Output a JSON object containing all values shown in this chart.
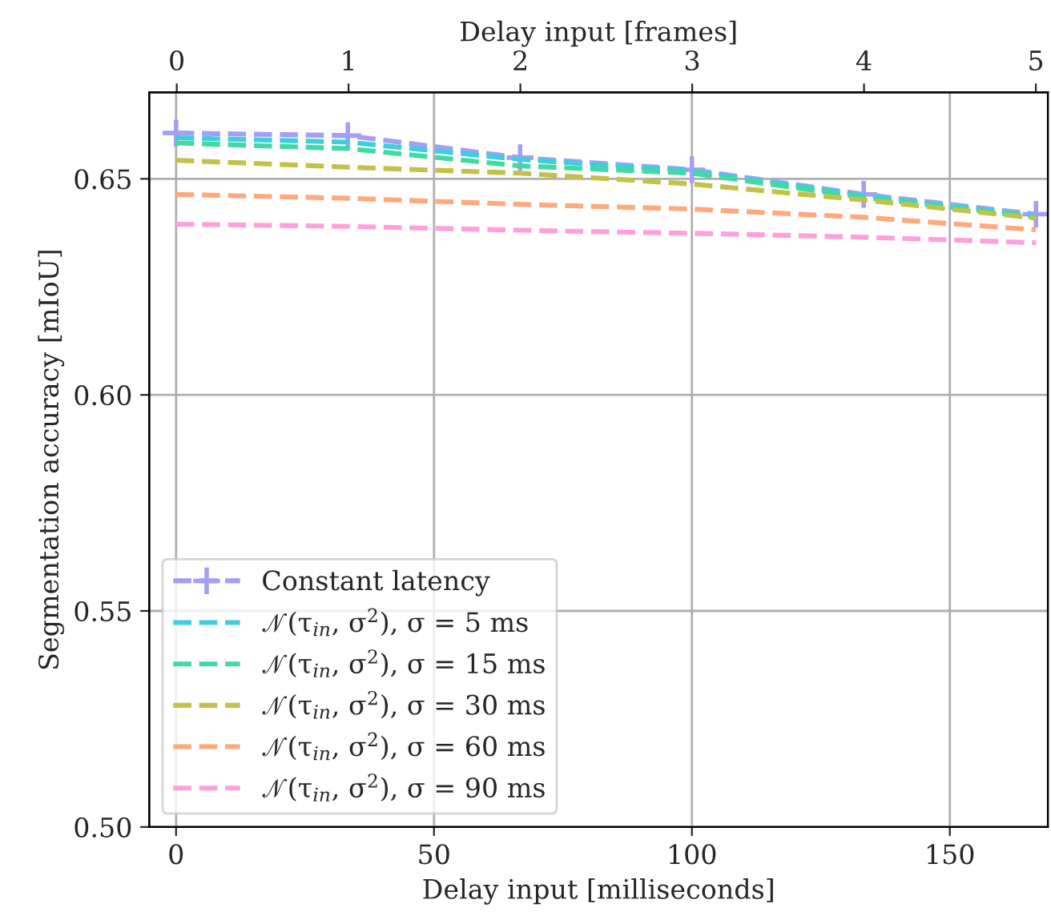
{
  "chart_data": {
    "type": "line",
    "xlabel": "Delay input [milliseconds]",
    "x2label": "Delay input [frames]",
    "ylabel": "Segmentation accuracy [mIoU]",
    "x": [
      0,
      33.3,
      66.7,
      100,
      133.3,
      166.7
    ],
    "xlim": [
      -5.2,
      169
    ],
    "xticks": [
      0,
      50,
      100,
      150
    ],
    "x2lim": [
      -0.16,
      5.07
    ],
    "x2ticks": [
      0,
      1,
      2,
      3,
      4,
      5
    ],
    "ylim": [
      0.5,
      0.67
    ],
    "yticks": [
      {
        "value": 0.5,
        "label": "0.50"
      },
      {
        "value": 0.55,
        "label": "0.55"
      },
      {
        "value": 0.6,
        "label": "0.60"
      },
      {
        "value": 0.65,
        "label": "0.65"
      }
    ],
    "grid": true,
    "legend": "lower left",
    "line_style": "dashed",
    "series": [
      {
        "name": "Constant latency",
        "color": "#a59ef5",
        "marker": "cross",
        "values": [
          0.6606,
          0.66,
          0.6549,
          0.6521,
          0.6464,
          0.6418
        ]
      },
      {
        "name": "𝒩(τ$_{in}$, σ$^{2}$), σ = 5 ms",
        "color": "#3fcfdc",
        "marker": "none",
        "values": [
          0.6595,
          0.6585,
          0.6545,
          0.6518,
          0.6461,
          0.6414
        ]
      },
      {
        "name": "𝒩(τ$_{in}$, σ$^{2}$), σ = 15 ms",
        "color": "#43d9a2",
        "marker": "none",
        "values": [
          0.6583,
          0.657,
          0.653,
          0.6513,
          0.6457,
          0.6411
        ]
      },
      {
        "name": "𝒩(τ$_{in}$, σ$^{2}$), σ = 30 ms",
        "color": "#c2c24a",
        "marker": "none",
        "values": [
          0.6543,
          0.6527,
          0.6513,
          0.6488,
          0.6451,
          0.6409
        ]
      },
      {
        "name": "𝒩(τ$_{in}$, σ$^{2}$), σ = 60 ms",
        "color": "#ffa97c",
        "marker": "none",
        "values": [
          0.6464,
          0.6455,
          0.6441,
          0.643,
          0.6411,
          0.6382
        ]
      },
      {
        "name": "𝒩(τ$_{in}$, σ$^{2}$), σ = 90 ms",
        "color": "#ffa0dc",
        "marker": "none",
        "values": [
          0.6395,
          0.639,
          0.6381,
          0.6374,
          0.6365,
          0.6352
        ]
      }
    ]
  }
}
